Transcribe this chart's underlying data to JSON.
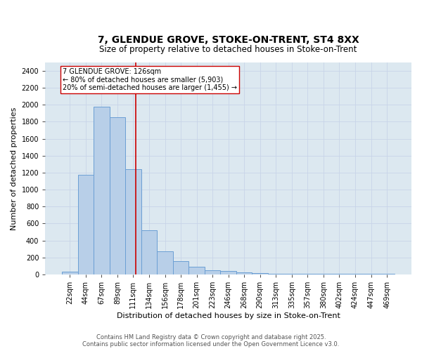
{
  "title_line1": "7, GLENDUE GROVE, STOKE-ON-TRENT, ST4 8XX",
  "title_line2": "Size of property relative to detached houses in Stoke-on-Trent",
  "xlabel": "Distribution of detached houses by size in Stoke-on-Trent",
  "ylabel": "Number of detached properties",
  "categories": [
    "22sqm",
    "44sqm",
    "67sqm",
    "89sqm",
    "111sqm",
    "134sqm",
    "156sqm",
    "178sqm",
    "201sqm",
    "223sqm",
    "246sqm",
    "268sqm",
    "290sqm",
    "313sqm",
    "335sqm",
    "357sqm",
    "380sqm",
    "402sqm",
    "424sqm",
    "447sqm",
    "469sqm"
  ],
  "values": [
    30,
    1175,
    1975,
    1850,
    1240,
    520,
    270,
    155,
    90,
    50,
    40,
    25,
    18,
    10,
    5,
    5,
    5,
    5,
    5,
    5,
    5
  ],
  "bar_color": "#b8cfe8",
  "bar_edge_color": "#6b9fd4",
  "bar_edge_width": 0.7,
  "vline_color": "#cc0000",
  "annotation_text": "7 GLENDUE GROVE: 126sqm\n← 80% of detached houses are smaller (5,903)\n20% of semi-detached houses are larger (1,455) →",
  "annotation_box_color": "#ffffff",
  "annotation_box_edge_color": "#cc0000",
  "ylim": [
    0,
    2500
  ],
  "yticks": [
    0,
    200,
    400,
    600,
    800,
    1000,
    1200,
    1400,
    1600,
    1800,
    2000,
    2200,
    2400
  ],
  "grid_color": "#c8d4e8",
  "background_color": "#dce8f0",
  "footer_line1": "Contains HM Land Registry data © Crown copyright and database right 2025.",
  "footer_line2": "Contains public sector information licensed under the Open Government Licence v3.0.",
  "title_fontsize": 10,
  "subtitle_fontsize": 8.5,
  "tick_fontsize": 7,
  "label_fontsize": 8,
  "footer_fontsize": 6,
  "annotation_fontsize": 7
}
